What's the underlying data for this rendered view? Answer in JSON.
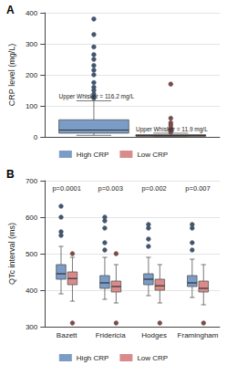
{
  "chart_data": [
    {
      "type": "boxplot",
      "title": "A",
      "y_label": "CRP level (mg/L)",
      "categories": [
        null
      ],
      "series": [
        {
          "name": "High CRP",
          "color": "#7a9cc6",
          "values": [
            [
              5,
              12,
              22,
              55,
              116.2
            ]
          ],
          "outliers": [
            [
              125,
              130,
              138,
              150,
              160,
              175,
              200,
              215,
              230,
              250,
              265,
              290,
              330,
              380
            ]
          ]
        },
        {
          "name": "Low CRP",
          "color": "#d98b8b",
          "values": [
            [
              0.5,
              2,
              4,
              7,
              11.9
            ]
          ],
          "outliers": [
            [
              15,
              18,
              22,
              26,
              30,
              38,
              45,
              60,
              170
            ]
          ]
        }
      ],
      "annotations": [
        {
          "text": "Upper Whisker = 116.2 mg/L",
          "series": "High CRP"
        },
        {
          "text": "Upper Whisker = 11.9 mg/L",
          "series": "Low CRP"
        }
      ],
      "ylim": [
        0,
        400
      ],
      "yticks": [
        0,
        100,
        200,
        300,
        400
      ],
      "grid": true,
      "legend": "bottom",
      "tick_labels": "y"
    },
    {
      "type": "boxplot",
      "title": "B",
      "y_label": "QTc interval (ms)",
      "categories": [
        "Bazett",
        "Fridericia",
        "Hodges",
        "Framingham"
      ],
      "series": [
        {
          "name": "High CRP",
          "color": "#7a9cc6",
          "values": [
            [
              390,
              430,
              445,
              470,
              520
            ],
            [
              375,
              405,
              420,
              440,
              490
            ],
            [
              385,
              415,
              430,
              445,
              490
            ],
            [
              380,
              410,
              420,
              440,
              485
            ]
          ],
          "outliers": [
            [
              550,
              560,
              600,
              630
            ],
            [
              510,
              530,
              570,
              590,
              600
            ],
            [
              520,
              540,
              570,
              580
            ],
            [
              510,
              530,
              570,
              580
            ]
          ]
        },
        {
          "name": "Low CRP",
          "color": "#d98b8b",
          "values": [
            [
              370,
              415,
              432,
              450,
              490
            ],
            [
              365,
              395,
              410,
              425,
              470
            ],
            [
              365,
              400,
              412,
              430,
              470
            ],
            [
              360,
              395,
              405,
              425,
              470
            ]
          ],
          "outliers": [
            [
              310,
              500
            ],
            [
              310,
              500
            ],
            [
              310
            ],
            [
              310
            ]
          ]
        }
      ],
      "annotations": [
        {
          "text": "p=0.0001",
          "x": "Bazett"
        },
        {
          "text": "p=0.003",
          "x": "Fridericia"
        },
        {
          "text": "p=0.002",
          "x": "Hodges"
        },
        {
          "text": "p=0.007",
          "x": "Framingham"
        }
      ],
      "ylim": [
        300,
        700
      ],
      "yticks": [
        300,
        400,
        500,
        600,
        700
      ],
      "grid": true,
      "legend": "bottom",
      "tick_labels": true
    }
  ]
}
